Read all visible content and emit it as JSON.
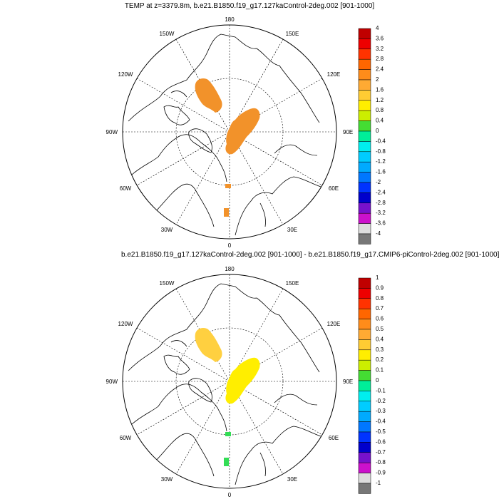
{
  "panels": [
    {
      "title": "TEMP at z=3379.8m, b.e21.B1850.f19_g17.127kaControl-2deg.002 [901-1000]",
      "lon_labels": {
        "top": "180",
        "bottom": "0",
        "left": "90W",
        "right": "90E",
        "tl1": "150W",
        "tl2": "120W",
        "tr1": "150E",
        "tr2": "120E",
        "bl1": "60W",
        "bl2": "30W",
        "br1": "60E",
        "br2": "30E"
      },
      "colorbar_labels": [
        "4",
        "3.6",
        "3.2",
        "2.8",
        "2.4",
        "2",
        "1.6",
        "1.2",
        "0.8",
        "0.4",
        "0",
        "-0.4",
        "-0.8",
        "-1.2",
        "-1.6",
        "-2",
        "-2.4",
        "-2.8",
        "-3.2",
        "-3.6",
        "-4"
      ],
      "blob_color": "#f2922a",
      "small_blob_color": "#f2922a"
    },
    {
      "title": "b.e21.B1850.f19_g17.127kaControl-2deg.002 [901-1000] - b.e21.B1850.f19_g17.CMIP6-piControl-2deg.002 [901-1000]",
      "lon_labels": {
        "top": "180",
        "bottom": "0",
        "left": "90W",
        "right": "90E",
        "tl1": "150W",
        "tl2": "120W",
        "tr1": "150E",
        "tr2": "120E",
        "bl1": "60W",
        "bl2": "30W",
        "br1": "60E",
        "br2": "30E"
      },
      "colorbar_labels": [
        "1",
        "0.9",
        "0.8",
        "0.7",
        "0.6",
        "0.5",
        "0.4",
        "0.3",
        "0.2",
        "0.1",
        "0",
        "-0.1",
        "-0.2",
        "-0.3",
        "-0.4",
        "-0.5",
        "-0.6",
        "-0.7",
        "-0.8",
        "-0.9",
        "-1"
      ],
      "blob_color": "#ffee00",
      "blob2_color": "#ffd040",
      "small_blob_color": "#33dd55"
    }
  ],
  "colorbar_colors": [
    "#c00000",
    "#ee0000",
    "#ff3300",
    "#ff6600",
    "#ff8c1a",
    "#ffaa33",
    "#ffcc33",
    "#ffee00",
    "#ccee00",
    "#44dd33",
    "#00ee99",
    "#00eeee",
    "#00ccff",
    "#00aaff",
    "#0077ff",
    "#0033ff",
    "#0000cc",
    "#7711cc",
    "#cc11cc",
    "#dddddd",
    "#777777"
  ]
}
